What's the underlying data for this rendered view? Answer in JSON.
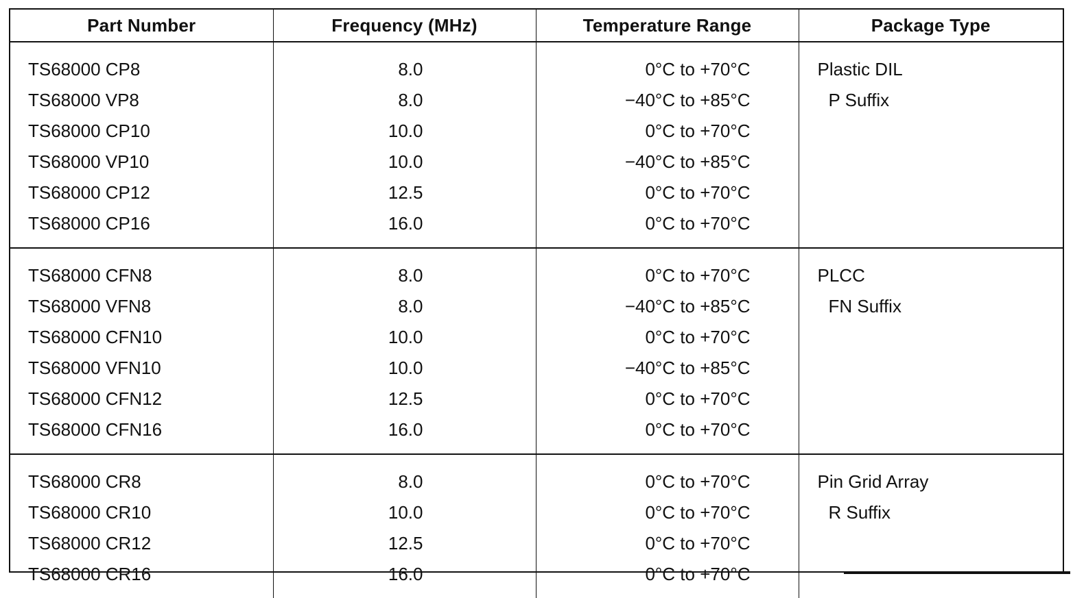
{
  "headers": {
    "part_number": "Part Number",
    "frequency": "Frequency (MHz)",
    "temperature": "Temperature Range",
    "package": "Package Type"
  },
  "groups": [
    {
      "package_name": "Plastic DIL",
      "package_suffix": "P Suffix",
      "rows": [
        {
          "part": "TS68000 CP8",
          "freq": "8.0",
          "temp": "0°C to +70°C"
        },
        {
          "part": "TS68000 VP8",
          "freq": "8.0",
          "temp": "−40°C to +85°C"
        },
        {
          "part": "TS68000 CP10",
          "freq": "10.0",
          "temp": "0°C to +70°C"
        },
        {
          "part": "TS68000 VP10",
          "freq": "10.0",
          "temp": "−40°C to +85°C"
        },
        {
          "part": "TS68000 CP12",
          "freq": "12.5",
          "temp": "0°C to +70°C"
        },
        {
          "part": "TS68000 CP16",
          "freq": "16.0",
          "temp": "0°C to +70°C"
        }
      ]
    },
    {
      "package_name": "PLCC",
      "package_suffix": "FN Suffix",
      "rows": [
        {
          "part": "TS68000 CFN8",
          "freq": "8.0",
          "temp": "0°C to +70°C"
        },
        {
          "part": "TS68000 VFN8",
          "freq": "8.0",
          "temp": "−40°C to +85°C"
        },
        {
          "part": "TS68000 CFN10",
          "freq": "10.0",
          "temp": "0°C to +70°C"
        },
        {
          "part": "TS68000 VFN10",
          "freq": "10.0",
          "temp": "−40°C to +85°C"
        },
        {
          "part": "TS68000 CFN12",
          "freq": "12.5",
          "temp": "0°C to +70°C"
        },
        {
          "part": "TS68000 CFN16",
          "freq": "16.0",
          "temp": "0°C to +70°C"
        }
      ]
    },
    {
      "package_name": "Pin Grid Array",
      "package_suffix": "R Suffix",
      "rows": [
        {
          "part": "TS68000 CR8",
          "freq": "8.0",
          "temp": "0°C to +70°C"
        },
        {
          "part": "TS68000 CR10",
          "freq": "10.0",
          "temp": "0°C to +70°C"
        },
        {
          "part": "TS68000 CR12",
          "freq": "12.5",
          "temp": "0°C to +70°C"
        },
        {
          "part": "TS68000 CR16",
          "freq": "16.0",
          "temp": "0°C to +70°C"
        }
      ]
    }
  ]
}
